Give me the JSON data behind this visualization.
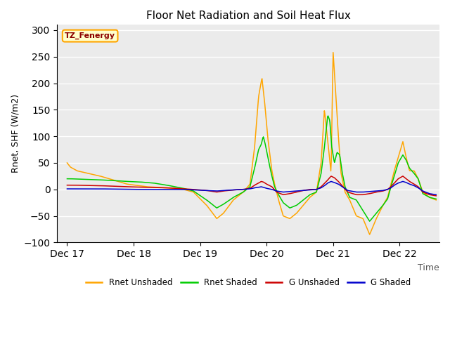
{
  "title": "Floor Net Radiation and Soil Heat Flux",
  "xlabel": "Time",
  "ylabel": "Rnet, SHF (W/m2)",
  "ylim": [
    -100,
    310
  ],
  "yticks": [
    -100,
    -50,
    0,
    50,
    100,
    150,
    200,
    250,
    300
  ],
  "xtick_labels": [
    "Dec 17",
    "Dec 18",
    "Dec 19",
    "Dec 20",
    "Dec 21",
    "Dec 22"
  ],
  "xtick_positions": [
    0,
    1,
    2,
    3,
    4,
    5
  ],
  "watermark_text": "TZ_Fenergy",
  "background_color": "#ebebeb",
  "colors": {
    "rnet_unshaded": "#FFA500",
    "rnet_shaded": "#00CC00",
    "g_unshaded": "#CC0000",
    "g_shaded": "#0000CC"
  },
  "legend_labels": [
    "Rnet Unshaded",
    "Rnet Shaded",
    "G Unshaded",
    "G Shaded"
  ]
}
